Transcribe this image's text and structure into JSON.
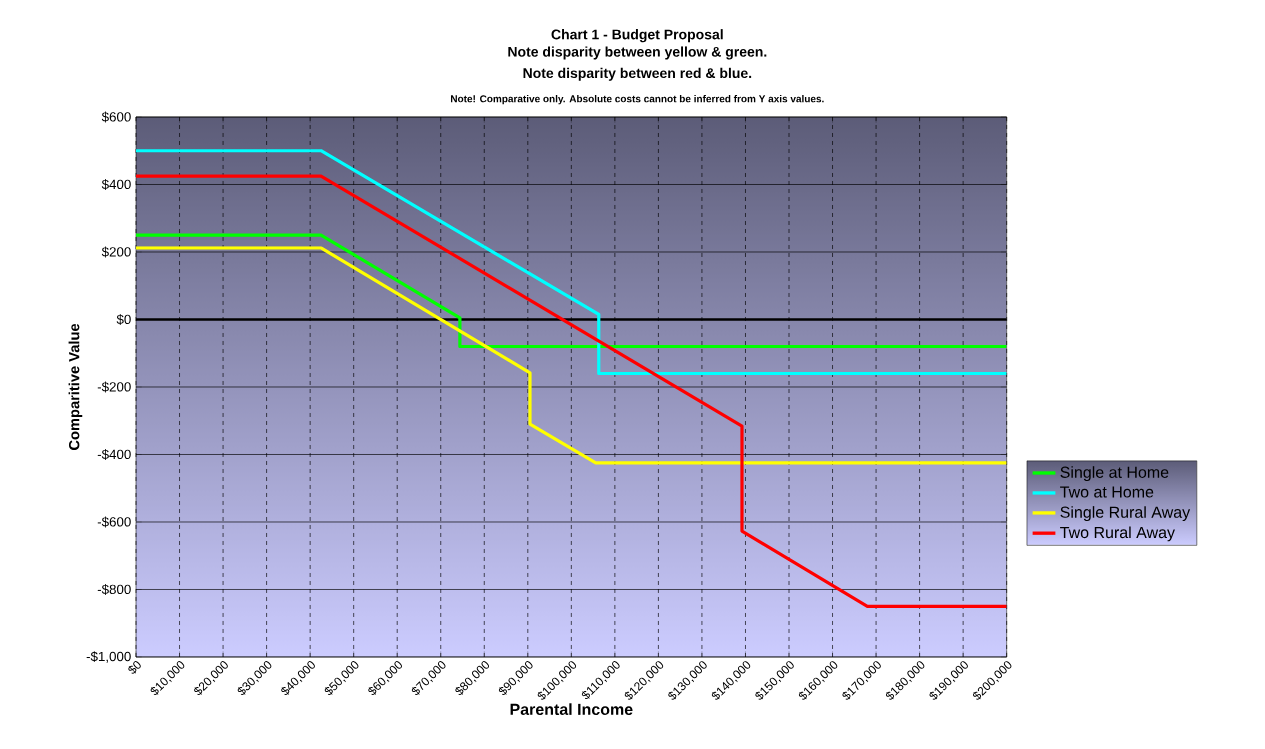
{
  "chart_data": {
    "type": "line",
    "title": "Chart 1 - Budget Proposal",
    "subtitle": "Note disparity between yellow & green.",
    "annotations": [
      "Note disparity between red & blue.",
      "Note! Comparative only.  Absolute costs cannot be inferred from Y axis values."
    ],
    "xlabel": "Parental Income",
    "ylabel": "Comparitive Value",
    "series": [
      {
        "name": "Single at Home",
        "color": "#00ff00",
        "x": [
          0,
          42500,
          74400,
          74400,
          200000
        ],
        "values": [
          250,
          250,
          5,
          -80,
          -80
        ]
      },
      {
        "name": "Two at Home",
        "color": "#00ffff",
        "x": [
          0,
          42500,
          106300,
          106300,
          200000
        ],
        "values": [
          500,
          500,
          15,
          -160,
          -160
        ]
      },
      {
        "name": "Single Rural Away",
        "color": "#ffff00",
        "x": [
          0,
          42500,
          90500,
          90500,
          105600,
          200000
        ],
        "values": [
          212,
          212,
          -158,
          -310,
          -425,
          -425
        ]
      },
      {
        "name": "Two Rural Away",
        "color": "#ff0000",
        "x": [
          0,
          42500,
          139200,
          139200,
          168000,
          200000
        ],
        "values": [
          425,
          425,
          -316,
          -627,
          -850,
          -850
        ]
      }
    ],
    "xlim": [
      0,
      200000
    ],
    "ylim": [
      -1000,
      600
    ],
    "xticks": [
      {
        "value": 0,
        "label": "$0"
      },
      {
        "value": 10000,
        "label": "$10,000"
      },
      {
        "value": 20000,
        "label": "$20,000"
      },
      {
        "value": 30000,
        "label": "$30,000"
      },
      {
        "value": 40000,
        "label": "$40,000"
      },
      {
        "value": 50000,
        "label": "$50,000"
      },
      {
        "value": 60000,
        "label": "$60,000"
      },
      {
        "value": 70000,
        "label": "$70,000"
      },
      {
        "value": 80000,
        "label": "$80,000"
      },
      {
        "value": 90000,
        "label": "$90,000"
      },
      {
        "value": 100000,
        "label": "$100,000"
      },
      {
        "value": 110000,
        "label": "$110,000"
      },
      {
        "value": 120000,
        "label": "$120,000"
      },
      {
        "value": 130000,
        "label": "$130,000"
      },
      {
        "value": 140000,
        "label": "$140,000"
      },
      {
        "value": 150000,
        "label": "$150,000"
      },
      {
        "value": 160000,
        "label": "$160,000"
      },
      {
        "value": 170000,
        "label": "$170,000"
      },
      {
        "value": 180000,
        "label": "$180,000"
      },
      {
        "value": 190000,
        "label": "$190,000"
      },
      {
        "value": 200000,
        "label": "$200,000"
      }
    ],
    "yticks": [
      {
        "value": -1000,
        "label": "-$1,000"
      },
      {
        "value": -800,
        "label": "-$800"
      },
      {
        "value": -600,
        "label": "-$600"
      },
      {
        "value": -400,
        "label": "-$400"
      },
      {
        "value": -200,
        "label": "-$200"
      },
      {
        "value": 0,
        "label": "$0"
      },
      {
        "value": 200,
        "label": "$200"
      },
      {
        "value": 400,
        "label": "$400"
      },
      {
        "value": 600,
        "label": "$600"
      }
    ],
    "ref_lines": [
      {
        "axis": "y",
        "value": 0,
        "color": "#000000"
      }
    ],
    "grid": true,
    "legend": "right",
    "marker": "none",
    "line_style": "solid"
  }
}
